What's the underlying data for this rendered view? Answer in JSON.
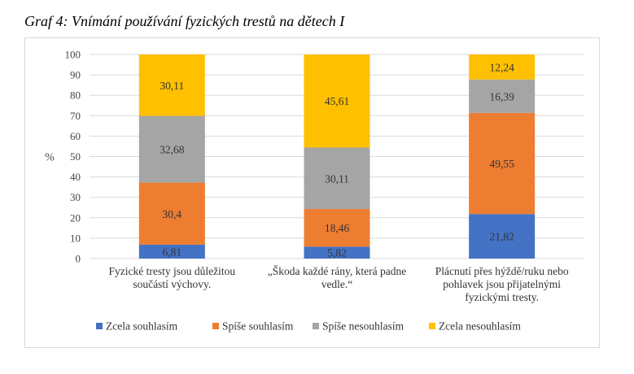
{
  "caption": "Graf 4: Vnímání používání fyzických trestů na dětech I",
  "chart_data": {
    "type": "bar",
    "stacked": true,
    "title": "",
    "xlabel": "",
    "ylabel": "%",
    "ylim": [
      0,
      100
    ],
    "yticks": [
      0,
      10,
      20,
      30,
      40,
      50,
      60,
      70,
      80,
      90,
      100
    ],
    "grid": true,
    "legend_position": "bottom",
    "categories": [
      [
        "Fyzické tresty jsou důležitou",
        "součástí výchovy."
      ],
      [
        "„Škoda každé rány, která padne",
        "vedle.“"
      ],
      [
        "Plácnutí přes hýždě/ruku nebo",
        "pohlavek jsou přijatelnými",
        "fyzickými tresty."
      ]
    ],
    "series": [
      {
        "name": "Zcela souhlasím",
        "color": "#4472c4",
        "values": [
          6.81,
          5.82,
          21.82
        ],
        "labels": [
          "6,81",
          "5,82",
          "21,82"
        ]
      },
      {
        "name": "Spíše souhlasím",
        "color": "#ed7d31",
        "values": [
          30.4,
          18.46,
          49.55
        ],
        "labels": [
          "30,4",
          "18,46",
          "49,55"
        ]
      },
      {
        "name": "Spíše nesouhlasím",
        "color": "#a5a5a5",
        "values": [
          32.68,
          30.11,
          16.39
        ],
        "labels": [
          "32,68",
          "30,11",
          "16,39"
        ]
      },
      {
        "name": "Zcela nesouhlasím",
        "color": "#ffc000",
        "values": [
          30.11,
          45.61,
          12.24
        ],
        "labels": [
          "30,11",
          "45,61",
          "12,24"
        ]
      }
    ]
  }
}
